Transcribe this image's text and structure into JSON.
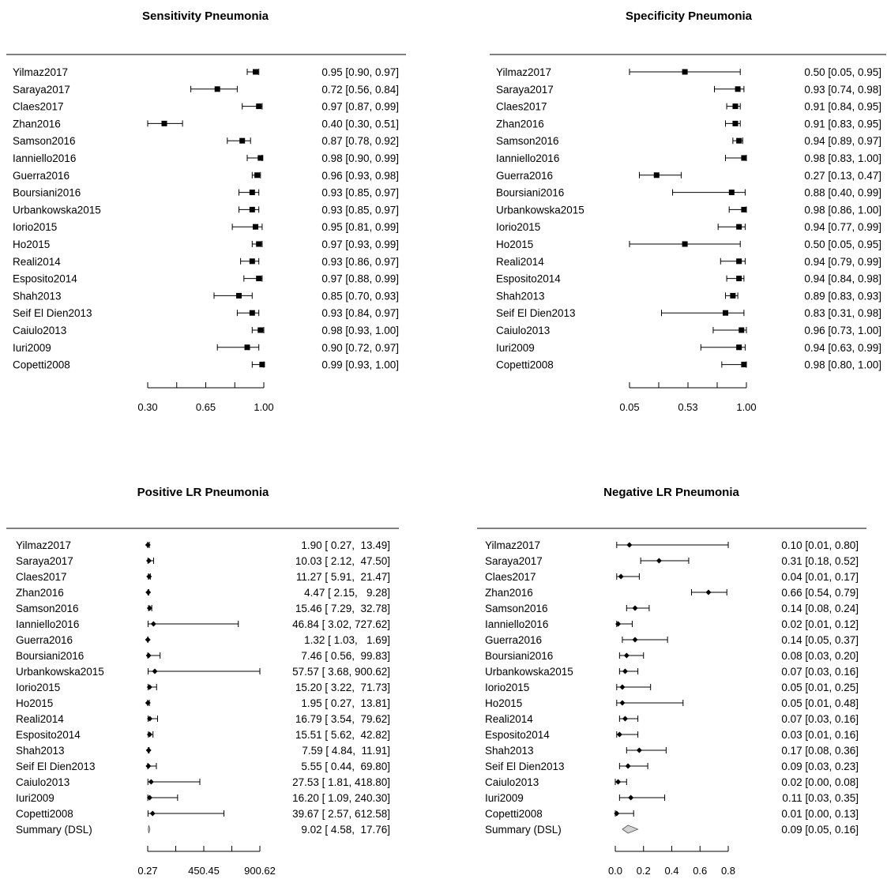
{
  "chart_data": [
    {
      "type": "forest",
      "title": "Sensitivity Pneumonia",
      "marker": "square",
      "xlim": [
        0.3,
        1.0
      ],
      "ticks": [
        0.3,
        0.475,
        0.65,
        0.825,
        1.0
      ],
      "tick_labels": [
        "0.30",
        "",
        "0.65",
        "",
        "1.00"
      ],
      "studies": [
        {
          "name": "Yilmaz2017",
          "est": 0.95,
          "lo": 0.9,
          "hi": 0.97,
          "text": "0.95 [0.90, 0.97]"
        },
        {
          "name": "Saraya2017",
          "est": 0.72,
          "lo": 0.56,
          "hi": 0.84,
          "text": "0.72 [0.56, 0.84]"
        },
        {
          "name": "Claes2017",
          "est": 0.97,
          "lo": 0.87,
          "hi": 0.99,
          "text": "0.97 [0.87, 0.99]"
        },
        {
          "name": "Zhan2016",
          "est": 0.4,
          "lo": 0.3,
          "hi": 0.51,
          "text": "0.40 [0.30, 0.51]"
        },
        {
          "name": "Samson2016",
          "est": 0.87,
          "lo": 0.78,
          "hi": 0.92,
          "text": "0.87 [0.78, 0.92]"
        },
        {
          "name": "Ianniello2016",
          "est": 0.98,
          "lo": 0.9,
          "hi": 0.99,
          "text": "0.98 [0.90, 0.99]"
        },
        {
          "name": "Guerra2016",
          "est": 0.96,
          "lo": 0.93,
          "hi": 0.98,
          "text": "0.96 [0.93, 0.98]"
        },
        {
          "name": "Boursiani2016",
          "est": 0.93,
          "lo": 0.85,
          "hi": 0.97,
          "text": "0.93 [0.85, 0.97]"
        },
        {
          "name": "Urbankowska2015",
          "est": 0.93,
          "lo": 0.85,
          "hi": 0.97,
          "text": "0.93 [0.85, 0.97]"
        },
        {
          "name": "Iorio2015",
          "est": 0.95,
          "lo": 0.81,
          "hi": 0.99,
          "text": "0.95 [0.81, 0.99]"
        },
        {
          "name": "Ho2015",
          "est": 0.97,
          "lo": 0.93,
          "hi": 0.99,
          "text": "0.97 [0.93, 0.99]"
        },
        {
          "name": "Reali2014",
          "est": 0.93,
          "lo": 0.86,
          "hi": 0.97,
          "text": "0.93 [0.86, 0.97]"
        },
        {
          "name": "Esposito2014",
          "est": 0.97,
          "lo": 0.88,
          "hi": 0.99,
          "text": "0.97 [0.88, 0.99]"
        },
        {
          "name": "Shah2013",
          "est": 0.85,
          "lo": 0.7,
          "hi": 0.93,
          "text": "0.85 [0.70, 0.93]"
        },
        {
          "name": "Seif El Dien2013",
          "est": 0.93,
          "lo": 0.84,
          "hi": 0.97,
          "text": "0.93 [0.84, 0.97]"
        },
        {
          "name": "Caiulo2013",
          "est": 0.98,
          "lo": 0.93,
          "hi": 1.0,
          "text": "0.98 [0.93, 1.00]"
        },
        {
          "name": "Iuri2009",
          "est": 0.9,
          "lo": 0.72,
          "hi": 0.97,
          "text": "0.90 [0.72, 0.97]"
        },
        {
          "name": "Copetti2008",
          "est": 0.99,
          "lo": 0.93,
          "hi": 1.0,
          "text": "0.99 [0.93, 1.00]"
        }
      ]
    },
    {
      "type": "forest",
      "title": "Specificity Pneumonia",
      "marker": "square",
      "xlim": [
        0.05,
        1.0
      ],
      "ticks": [
        0.05,
        0.2875,
        0.525,
        0.7625,
        1.0
      ],
      "tick_labels": [
        "0.05",
        "",
        "0.53",
        "",
        "1.00"
      ],
      "studies": [
        {
          "name": "Yilmaz2017",
          "est": 0.5,
          "lo": 0.05,
          "hi": 0.95,
          "text": "0.50 [0.05, 0.95]"
        },
        {
          "name": "Saraya2017",
          "est": 0.93,
          "lo": 0.74,
          "hi": 0.98,
          "text": "0.93 [0.74, 0.98]"
        },
        {
          "name": "Claes2017",
          "est": 0.91,
          "lo": 0.84,
          "hi": 0.95,
          "text": "0.91 [0.84, 0.95]"
        },
        {
          "name": "Zhan2016",
          "est": 0.91,
          "lo": 0.83,
          "hi": 0.95,
          "text": "0.91 [0.83, 0.95]"
        },
        {
          "name": "Samson2016",
          "est": 0.94,
          "lo": 0.89,
          "hi": 0.97,
          "text": "0.94 [0.89, 0.97]"
        },
        {
          "name": "Ianniello2016",
          "est": 0.98,
          "lo": 0.83,
          "hi": 1.0,
          "text": "0.98 [0.83, 1.00]"
        },
        {
          "name": "Guerra2016",
          "est": 0.27,
          "lo": 0.13,
          "hi": 0.47,
          "text": "0.27 [0.13, 0.47]"
        },
        {
          "name": "Boursiani2016",
          "est": 0.88,
          "lo": 0.4,
          "hi": 0.99,
          "text": "0.88 [0.40, 0.99]"
        },
        {
          "name": "Urbankowska2015",
          "est": 0.98,
          "lo": 0.86,
          "hi": 1.0,
          "text": "0.98 [0.86, 1.00]"
        },
        {
          "name": "Iorio2015",
          "est": 0.94,
          "lo": 0.77,
          "hi": 0.99,
          "text": "0.94 [0.77, 0.99]"
        },
        {
          "name": "Ho2015",
          "est": 0.5,
          "lo": 0.05,
          "hi": 0.95,
          "text": "0.50 [0.05, 0.95]"
        },
        {
          "name": "Reali2014",
          "est": 0.94,
          "lo": 0.79,
          "hi": 0.99,
          "text": "0.94 [0.79, 0.99]"
        },
        {
          "name": "Esposito2014",
          "est": 0.94,
          "lo": 0.84,
          "hi": 0.98,
          "text": "0.94 [0.84, 0.98]"
        },
        {
          "name": "Shah2013",
          "est": 0.89,
          "lo": 0.83,
          "hi": 0.93,
          "text": "0.89 [0.83, 0.93]"
        },
        {
          "name": "Seif El Dien2013",
          "est": 0.83,
          "lo": 0.31,
          "hi": 0.98,
          "text": "0.83 [0.31, 0.98]"
        },
        {
          "name": "Caiulo2013",
          "est": 0.96,
          "lo": 0.73,
          "hi": 1.0,
          "text": "0.96 [0.73, 1.00]"
        },
        {
          "name": "Iuri2009",
          "est": 0.94,
          "lo": 0.63,
          "hi": 0.99,
          "text": "0.94 [0.63, 0.99]"
        },
        {
          "name": "Copetti2008",
          "est": 0.98,
          "lo": 0.8,
          "hi": 1.0,
          "text": "0.98 [0.80, 1.00]"
        }
      ]
    },
    {
      "type": "forest",
      "title": "Positive LR Pneumonia",
      "marker": "diamond",
      "xlim": [
        0.27,
        900.62
      ],
      "ticks": [
        0.27,
        225.36,
        450.45,
        675.54,
        900.62
      ],
      "tick_labels": [
        "0.27",
        "",
        "450.45",
        "",
        "900.62"
      ],
      "studies": [
        {
          "name": "Yilmaz2017",
          "est": 1.9,
          "lo": 0.27,
          "hi": 13.49,
          "text": "1.90 [ 0.27,  13.49]"
        },
        {
          "name": "Saraya2017",
          "est": 10.03,
          "lo": 2.12,
          "hi": 47.5,
          "text": "10.03 [ 2.12,  47.50]"
        },
        {
          "name": "Claes2017",
          "est": 11.27,
          "lo": 5.91,
          "hi": 21.47,
          "text": "11.27 [ 5.91,  21.47]"
        },
        {
          "name": "Zhan2016",
          "est": 4.47,
          "lo": 2.15,
          "hi": 9.28,
          "text": "4.47 [ 2.15,   9.28]"
        },
        {
          "name": "Samson2016",
          "est": 15.46,
          "lo": 7.29,
          "hi": 32.78,
          "text": "15.46 [ 7.29,  32.78]"
        },
        {
          "name": "Ianniello2016",
          "est": 46.84,
          "lo": 3.02,
          "hi": 727.62,
          "text": "46.84 [ 3.02, 727.62]"
        },
        {
          "name": "Guerra2016",
          "est": 1.32,
          "lo": 1.03,
          "hi": 1.69,
          "text": "1.32 [ 1.03,   1.69]"
        },
        {
          "name": "Boursiani2016",
          "est": 7.46,
          "lo": 0.56,
          "hi": 99.83,
          "text": "7.46 [ 0.56,  99.83]"
        },
        {
          "name": "Urbankowska2015",
          "est": 57.57,
          "lo": 3.68,
          "hi": 900.62,
          "text": "57.57 [ 3.68, 900.62]"
        },
        {
          "name": "Iorio2015",
          "est": 15.2,
          "lo": 3.22,
          "hi": 71.73,
          "text": "15.20 [ 3.22,  71.73]"
        },
        {
          "name": "Ho2015",
          "est": 1.95,
          "lo": 0.27,
          "hi": 13.81,
          "text": "1.95 [ 0.27,  13.81]"
        },
        {
          "name": "Reali2014",
          "est": 16.79,
          "lo": 3.54,
          "hi": 79.62,
          "text": "16.79 [ 3.54,  79.62]"
        },
        {
          "name": "Esposito2014",
          "est": 15.51,
          "lo": 5.62,
          "hi": 42.82,
          "text": "15.51 [ 5.62,  42.82]"
        },
        {
          "name": "Shah2013",
          "est": 7.59,
          "lo": 4.84,
          "hi": 11.91,
          "text": "7.59 [ 4.84,  11.91]"
        },
        {
          "name": "Seif El Dien2013",
          "est": 5.55,
          "lo": 0.44,
          "hi": 69.8,
          "text": "5.55 [ 0.44,  69.80]"
        },
        {
          "name": "Caiulo2013",
          "est": 27.53,
          "lo": 1.81,
          "hi": 418.8,
          "text": "27.53 [ 1.81, 418.80]"
        },
        {
          "name": "Iuri2009",
          "est": 16.2,
          "lo": 1.09,
          "hi": 240.3,
          "text": "16.20 [ 1.09, 240.30]"
        },
        {
          "name": "Copetti2008",
          "est": 39.67,
          "lo": 2.57,
          "hi": 612.58,
          "text": "39.67 [ 2.57, 612.58]"
        }
      ],
      "summary": {
        "name": "Summary (DSL)",
        "est": 9.02,
        "lo": 4.58,
        "hi": 17.76,
        "text": "9.02 [ 4.58,  17.76]"
      }
    },
    {
      "type": "forest",
      "title": "Negative LR Pneumonia",
      "marker": "diamond",
      "xlim": [
        0.0,
        0.8
      ],
      "ticks": [
        0.0,
        0.2,
        0.4,
        0.6,
        0.8
      ],
      "tick_labels": [
        "0.0",
        "0.2",
        "0.4",
        "0.6",
        "0.8"
      ],
      "studies": [
        {
          "name": "Yilmaz2017",
          "est": 0.1,
          "lo": 0.01,
          "hi": 0.8,
          "text": "0.10 [0.01, 0.80]"
        },
        {
          "name": "Saraya2017",
          "est": 0.31,
          "lo": 0.18,
          "hi": 0.52,
          "text": "0.31 [0.18, 0.52]"
        },
        {
          "name": "Claes2017",
          "est": 0.04,
          "lo": 0.01,
          "hi": 0.17,
          "text": "0.04 [0.01, 0.17]"
        },
        {
          "name": "Zhan2016",
          "est": 0.66,
          "lo": 0.54,
          "hi": 0.79,
          "text": "0.66 [0.54, 0.79]"
        },
        {
          "name": "Samson2016",
          "est": 0.14,
          "lo": 0.08,
          "hi": 0.24,
          "text": "0.14 [0.08, 0.24]"
        },
        {
          "name": "Ianniello2016",
          "est": 0.02,
          "lo": 0.01,
          "hi": 0.12,
          "text": "0.02 [0.01, 0.12]"
        },
        {
          "name": "Guerra2016",
          "est": 0.14,
          "lo": 0.05,
          "hi": 0.37,
          "text": "0.14 [0.05, 0.37]"
        },
        {
          "name": "Boursiani2016",
          "est": 0.08,
          "lo": 0.03,
          "hi": 0.2,
          "text": "0.08 [0.03, 0.20]"
        },
        {
          "name": "Urbankowska2015",
          "est": 0.07,
          "lo": 0.03,
          "hi": 0.16,
          "text": "0.07 [0.03, 0.16]"
        },
        {
          "name": "Iorio2015",
          "est": 0.05,
          "lo": 0.01,
          "hi": 0.25,
          "text": "0.05 [0.01, 0.25]"
        },
        {
          "name": "Ho2015",
          "est": 0.05,
          "lo": 0.01,
          "hi": 0.48,
          "text": "0.05 [0.01, 0.48]"
        },
        {
          "name": "Reali2014",
          "est": 0.07,
          "lo": 0.03,
          "hi": 0.16,
          "text": "0.07 [0.03, 0.16]"
        },
        {
          "name": "Esposito2014",
          "est": 0.03,
          "lo": 0.01,
          "hi": 0.16,
          "text": "0.03 [0.01, 0.16]"
        },
        {
          "name": "Shah2013",
          "est": 0.17,
          "lo": 0.08,
          "hi": 0.36,
          "text": "0.17 [0.08, 0.36]"
        },
        {
          "name": "Seif El Dien2013",
          "est": 0.09,
          "lo": 0.03,
          "hi": 0.23,
          "text": "0.09 [0.03, 0.23]"
        },
        {
          "name": "Caiulo2013",
          "est": 0.02,
          "lo": 0.0,
          "hi": 0.08,
          "text": "0.02 [0.00, 0.08]"
        },
        {
          "name": "Iuri2009",
          "est": 0.11,
          "lo": 0.03,
          "hi": 0.35,
          "text": "0.11 [0.03, 0.35]"
        },
        {
          "name": "Copetti2008",
          "est": 0.01,
          "lo": 0.0,
          "hi": 0.13,
          "text": "0.01 [0.00, 0.13]"
        }
      ],
      "summary": {
        "name": "Summary (DSL)",
        "est": 0.09,
        "lo": 0.05,
        "hi": 0.16,
        "text": "0.09 [0.05, 0.16]"
      }
    }
  ]
}
